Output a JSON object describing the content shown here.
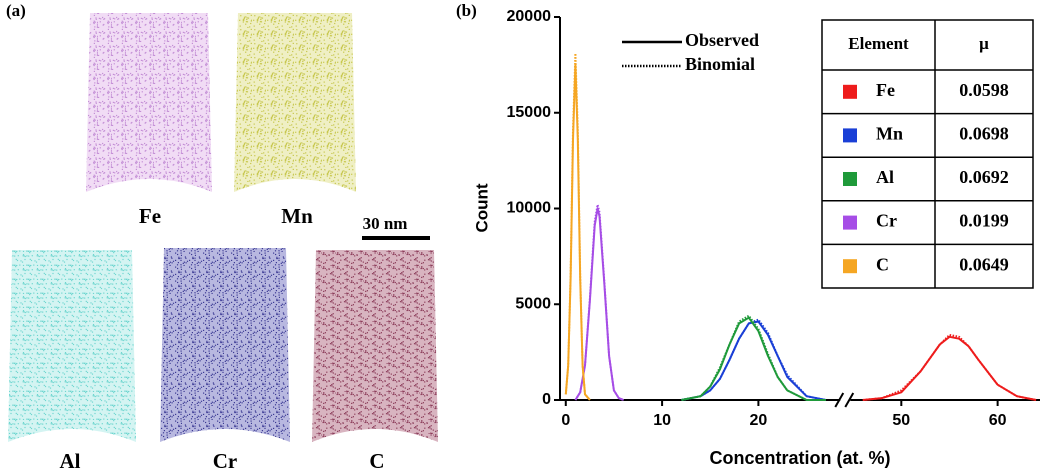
{
  "panel_a": {
    "label": "(a)",
    "maps": [
      "Fe",
      "Mn",
      "Al",
      "Cr",
      "C"
    ],
    "scale_bar": "30 nm"
  },
  "chart_data": {
    "type": "line",
    "panel_label": "(b)",
    "x_label": "Concentration (at. %)",
    "y_label": "Count",
    "xlim": [
      -0.6,
      64.4
    ],
    "xbreak": [
      28.5,
      44.7
    ],
    "xticks": [
      0,
      10,
      20,
      50,
      60
    ],
    "ylim": [
      0,
      20000
    ],
    "yticks": [
      0,
      5000,
      10000,
      15000,
      20000
    ],
    "line_styles": [
      {
        "name": "Observed",
        "dash": "solid"
      },
      {
        "name": "Binomial",
        "dash": "dotted"
      }
    ],
    "table_headers": [
      "Element",
      "μ"
    ],
    "series": [
      {
        "name": "Fe",
        "color": "#ee1c1c",
        "mu": 0.0598,
        "x": [
          46,
          48,
          50,
          52,
          53,
          54,
          55,
          56,
          57,
          58,
          60,
          62,
          64
        ],
        "values": [
          0,
          100,
          400,
          1500,
          2200,
          2900,
          3300,
          3200,
          2800,
          2100,
          800,
          200,
          0
        ],
        "binomial": [
          0,
          100,
          500,
          1500,
          2200,
          2900,
          3400,
          3300,
          2800,
          2100,
          800,
          200,
          0
        ]
      },
      {
        "name": "Mn",
        "color": "#1a3fd6",
        "mu": 0.0698,
        "x": [
          12,
          14,
          15,
          16,
          17,
          18,
          19,
          20,
          21,
          22,
          23,
          25,
          27
        ],
        "values": [
          0,
          200,
          500,
          1100,
          2100,
          3200,
          4000,
          4100,
          3400,
          2300,
          1200,
          200,
          0
        ],
        "binomial": [
          0,
          200,
          500,
          1100,
          2100,
          3200,
          4000,
          4200,
          3500,
          2300,
          1300,
          200,
          0
        ]
      },
      {
        "name": "Al",
        "color": "#1f9a3a",
        "mu": 0.0692,
        "x": [
          12,
          14,
          15,
          16,
          17,
          18,
          19,
          20,
          21,
          22,
          23,
          25,
          27
        ],
        "values": [
          0,
          200,
          700,
          1600,
          2900,
          4000,
          4300,
          3600,
          2300,
          1200,
          500,
          0,
          0
        ],
        "binomial": [
          0,
          200,
          700,
          1700,
          2900,
          4100,
          4400,
          3700,
          2400,
          1200,
          500,
          0,
          0
        ]
      },
      {
        "name": "Cr",
        "color": "#a64de6",
        "mu": 0.0199,
        "x": [
          1,
          1.5,
          2,
          2.5,
          3,
          3.3,
          3.5,
          4,
          4.5,
          5,
          5.5,
          6
        ],
        "values": [
          0,
          400,
          1800,
          5200,
          9100,
          10000,
          9600,
          6100,
          2300,
          500,
          100,
          0
        ],
        "binomial": [
          0,
          400,
          1800,
          5300,
          9300,
          10200,
          9800,
          6200,
          2300,
          500,
          100,
          0
        ]
      },
      {
        "name": "C",
        "color": "#f5a623",
        "mu": 0.0649,
        "x": [
          0,
          0.25,
          0.5,
          0.75,
          1,
          1.25,
          1.5,
          1.75,
          2,
          2.5
        ],
        "values": [
          300,
          1800,
          6300,
          13600,
          17500,
          13600,
          6300,
          1800,
          300,
          0
        ],
        "binomial": [
          300,
          1800,
          6500,
          14100,
          18100,
          14100,
          6500,
          1800,
          300,
          0
        ]
      }
    ]
  }
}
